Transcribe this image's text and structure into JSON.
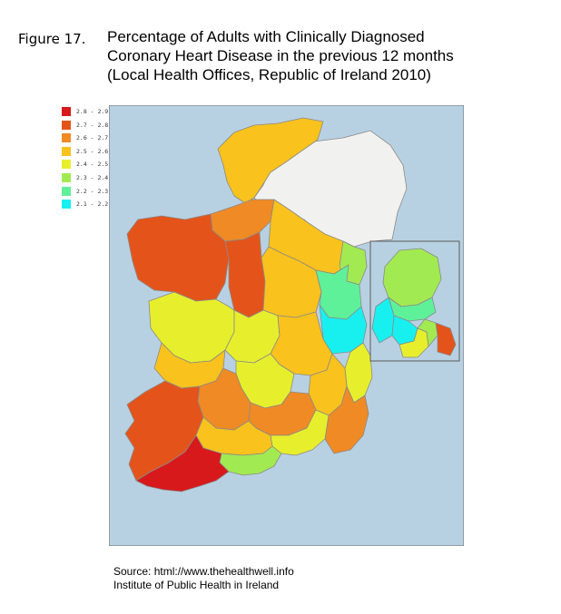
{
  "figure": {
    "label": "Figure 17.",
    "title_lines": [
      "Percentage of Adults with Clinically Diagnosed",
      "Coronary Heart Disease in the previous 12 months",
      "(Local Health Offices, Republic of Ireland 2010)"
    ]
  },
  "legend": [
    {
      "label": "2.8 - 2.9",
      "color": "#d7191c"
    },
    {
      "label": "2.7 - 2.8",
      "color": "#e4541a"
    },
    {
      "label": "2.6 - 2.7",
      "color": "#f08a24"
    },
    {
      "label": "2.5 - 2.6",
      "color": "#f9c21c"
    },
    {
      "label": "2.4 - 2.5",
      "color": "#e7ef2c"
    },
    {
      "label": "2.3 - 2.4",
      "color": "#a2ea52"
    },
    {
      "label": "2.2 - 2.3",
      "color": "#5ff09a"
    },
    {
      "label": "2.1 - 2.2",
      "color": "#18f0f0"
    }
  ],
  "map_colors": {
    "sea": "#b8d1e2",
    "northern_ireland": "#f1f1ef",
    "border": "#8a8a8a",
    "inset_background": "#b8d1e2"
  },
  "source": {
    "line1": "Source: html://www.thehealthwell.info",
    "line2": "Institute of Public Health in Ireland"
  }
}
